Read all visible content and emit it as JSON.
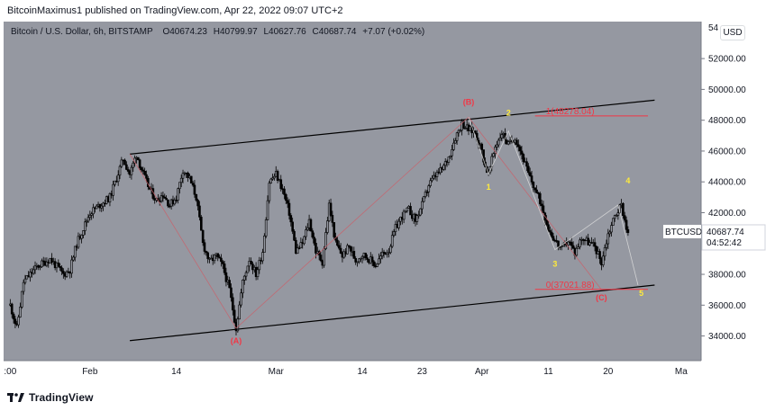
{
  "publication": {
    "author_line": "BitcoinMaximus1 published on TradingView.com, Apr 22, 2022 09:07 UTC+2"
  },
  "header": {
    "symbol": "Bitcoin / U.S. Dollar, 6h, BITSTAMP",
    "open_label": "O",
    "open": "40674.23",
    "high_label": "H",
    "high": "40799.97",
    "low_label": "L",
    "low": "40627.76",
    "close_label": "C",
    "close": "40687.74",
    "change": "+7.07 (+0.02%)",
    "currency_button": "USD"
  },
  "price_label": {
    "symbol": "BTCUSD",
    "price": "40687.74",
    "countdown": "04:52:42"
  },
  "footer": {
    "brand": "TradingView"
  },
  "colors": {
    "background": "#9598a1",
    "candle": "#000000",
    "channel": "#000000",
    "wave_abc": "#f23645",
    "wave_12345": "#ffeb3b",
    "fib_line": "#f23645",
    "axis_text": "#131722"
  },
  "chart_data": {
    "type": "candlestick",
    "y_axis": {
      "ticks": [
        34000,
        36000,
        38000,
        40000,
        42000,
        44000,
        46000,
        48000,
        50000,
        52000
      ],
      "tick_labels": [
        "34000.00",
        "36000.00",
        "38000.00",
        "40000.00",
        "42000.00",
        "44000.00",
        "46000.00",
        "48000.00",
        "50000.00",
        "52000.00"
      ],
      "top_partial_label": "54",
      "ylim": [
        32400,
        54400
      ]
    },
    "x_axis": {
      "labels": [
        {
          "x": 0,
          "label": ":00"
        },
        {
          "x": 12,
          "label": "Feb"
        },
        {
          "x": 25,
          "label": "14"
        },
        {
          "x": 40,
          "label": "Mar"
        },
        {
          "x": 53,
          "label": "14"
        },
        {
          "x": 62,
          "label": "23"
        },
        {
          "x": 71,
          "label": "Apr"
        },
        {
          "x": 81,
          "label": "11"
        },
        {
          "x": 90,
          "label": "20"
        },
        {
          "x": 101,
          "label": "Ma"
        }
      ],
      "xlim": [
        -1,
        104
      ]
    },
    "price_path": [
      [
        0,
        36000
      ],
      [
        1,
        34500
      ],
      [
        2,
        37500
      ],
      [
        4,
        38500
      ],
      [
        6,
        39000
      ],
      [
        8,
        38000
      ],
      [
        9,
        38300
      ],
      [
        10,
        40000
      ],
      [
        12,
        42000
      ],
      [
        15,
        43000
      ],
      [
        17,
        45500
      ],
      [
        18,
        44500
      ],
      [
        19,
        45800
      ],
      [
        20,
        44500
      ],
      [
        21,
        43500
      ],
      [
        22,
        42800
      ],
      [
        23,
        43200
      ],
      [
        24,
        42500
      ],
      [
        25,
        43000
      ],
      [
        26,
        44800
      ],
      [
        27,
        44200
      ],
      [
        28,
        43000
      ],
      [
        29,
        40000
      ],
      [
        30,
        38800
      ],
      [
        31,
        39200
      ],
      [
        32,
        38500
      ],
      [
        33,
        37000
      ],
      [
        34,
        34500
      ],
      [
        35,
        37500
      ],
      [
        36,
        39000
      ],
      [
        37,
        38000
      ],
      [
        38,
        39500
      ],
      [
        39,
        44000
      ],
      [
        40,
        44500
      ],
      [
        41,
        43500
      ],
      [
        42,
        42000
      ],
      [
        43,
        39500
      ],
      [
        44,
        40000
      ],
      [
        45,
        41500
      ],
      [
        46,
        39500
      ],
      [
        47,
        38800
      ],
      [
        48,
        42500
      ],
      [
        49,
        40000
      ],
      [
        50,
        39200
      ],
      [
        51,
        39800
      ],
      [
        52,
        38900
      ],
      [
        53,
        39300
      ],
      [
        54,
        39000
      ],
      [
        55,
        38600
      ],
      [
        56,
        39300
      ],
      [
        57,
        39600
      ],
      [
        58,
        41000
      ],
      [
        59,
        41800
      ],
      [
        60,
        42200
      ],
      [
        61,
        41500
      ],
      [
        62,
        42500
      ],
      [
        63,
        43800
      ],
      [
        64,
        44400
      ],
      [
        65,
        44800
      ],
      [
        66,
        45600
      ],
      [
        67,
        46900
      ],
      [
        68,
        47800
      ],
      [
        69,
        47400
      ],
      [
        70,
        47200
      ],
      [
        71,
        46000
      ],
      [
        71.5,
        45000
      ],
      [
        72,
        44500
      ],
      [
        73,
        46300
      ],
      [
        74,
        47200
      ],
      [
        75,
        46400
      ],
      [
        76,
        46900
      ],
      [
        77,
        45800
      ],
      [
        78,
        44500
      ],
      [
        79,
        43500
      ],
      [
        80,
        42500
      ],
      [
        81,
        41000
      ],
      [
        82,
        40200
      ],
      [
        83,
        39600
      ],
      [
        84,
        40200
      ],
      [
        85,
        39400
      ],
      [
        86,
        40400
      ],
      [
        87,
        40100
      ],
      [
        88,
        39800
      ],
      [
        89,
        38800
      ],
      [
        90,
        40600
      ],
      [
        91,
        41800
      ],
      [
        92,
        42500
      ],
      [
        93,
        40600
      ],
      [
        93.2,
        40687.74
      ]
    ],
    "channel_upper": [
      [
        18,
        45800
      ],
      [
        97,
        49300
      ]
    ],
    "channel_lower": [
      [
        18,
        33700
      ],
      [
        97,
        37300
      ]
    ],
    "wave_lines_abc": [
      [
        18,
        45800
      ],
      [
        34,
        34500
      ],
      [
        69,
        48200
      ],
      [
        89,
        37000
      ]
    ],
    "wave_lines_12345": [
      [
        69,
        48200
      ],
      [
        72,
        44500
      ],
      [
        75,
        47300
      ],
      [
        82,
        39600
      ],
      [
        91.5,
        42500
      ],
      [
        94.5,
        37300
      ]
    ],
    "fib_levels": [
      {
        "label": "1(48278.04)",
        "value": 48278.04,
        "x_from": 79,
        "x_to": 96
      },
      {
        "label": "0(37021.88)",
        "value": 37021.88,
        "x_from": 79,
        "x_to": 96
      }
    ],
    "wave_labels": [
      {
        "text": "(A)",
        "x": 34,
        "y": 33500,
        "color": "#f23645"
      },
      {
        "text": "(B)",
        "x": 69,
        "y": 49000,
        "color": "#f23645"
      },
      {
        "text": "(C)",
        "x": 89,
        "y": 36300,
        "color": "#f23645"
      },
      {
        "text": "1",
        "x": 72,
        "y": 43500,
        "color": "#ffeb3b"
      },
      {
        "text": "2",
        "x": 75,
        "y": 48300,
        "color": "#ffeb3b"
      },
      {
        "text": "3",
        "x": 82,
        "y": 38500,
        "color": "#ffeb3b"
      },
      {
        "text": "4",
        "x": 93,
        "y": 43900,
        "color": "#ffeb3b"
      },
      {
        "text": "5",
        "x": 95,
        "y": 36600,
        "color": "#ffeb3b"
      }
    ]
  }
}
